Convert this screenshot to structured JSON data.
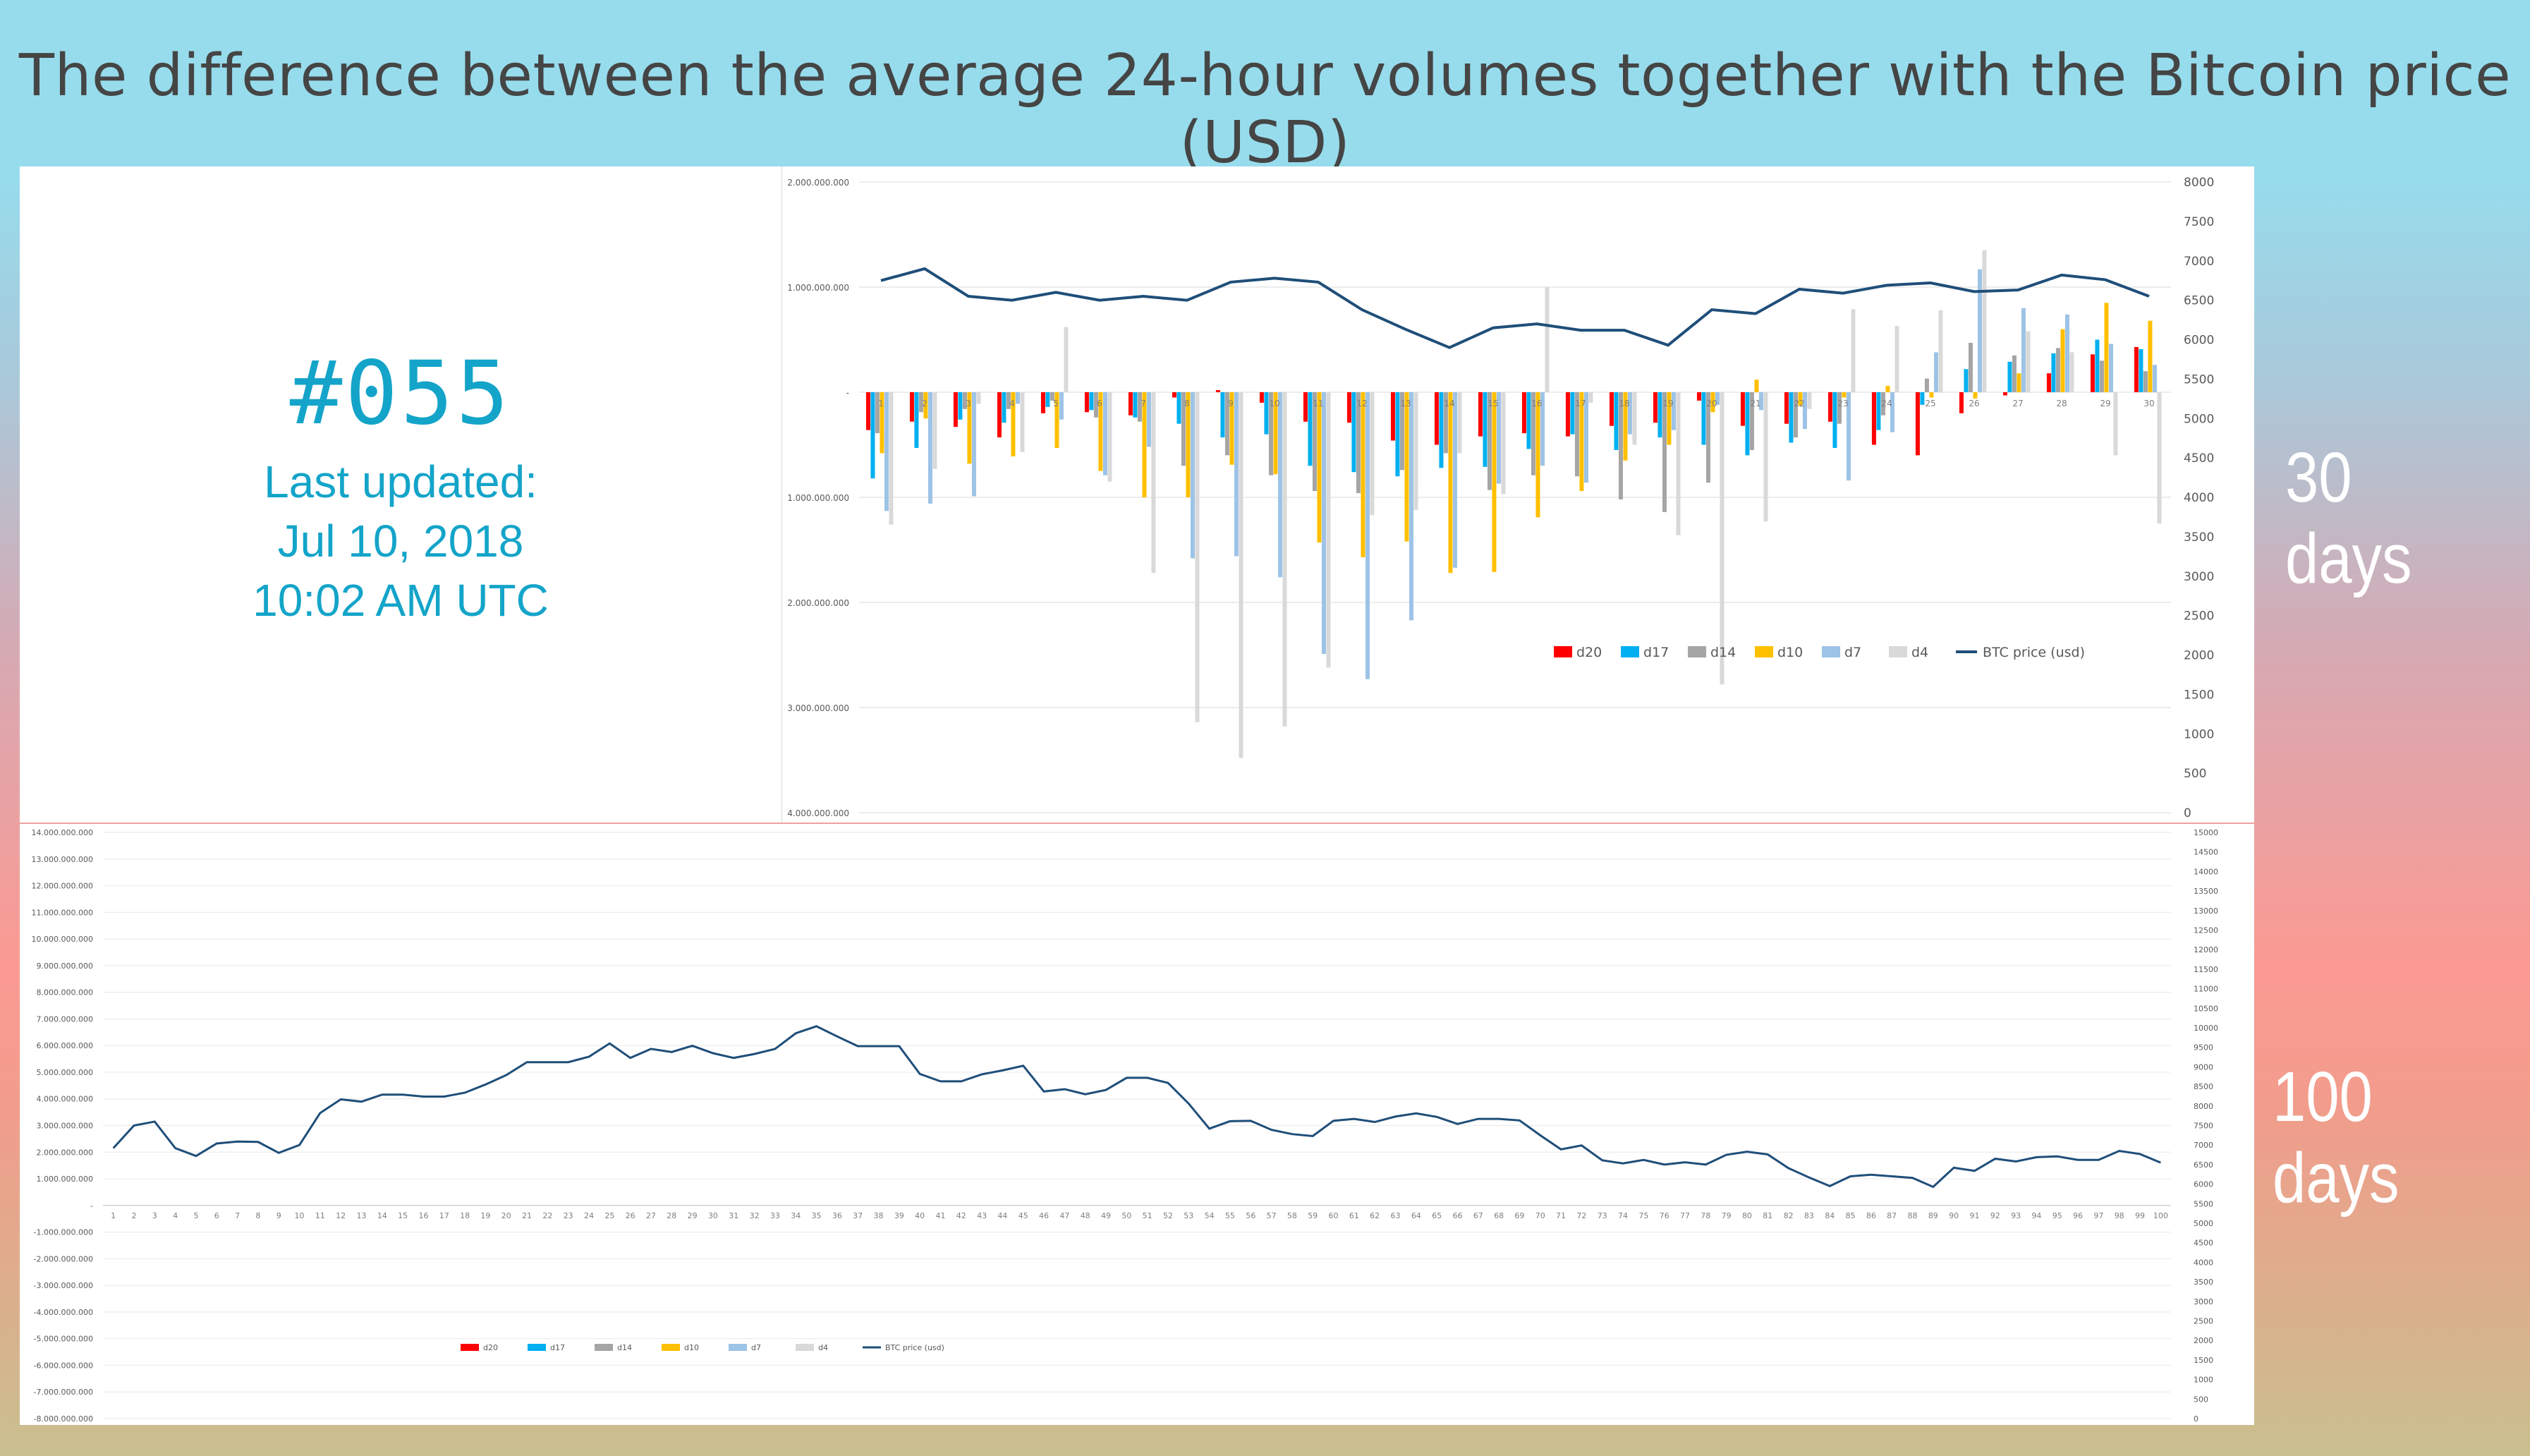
{
  "title": "The difference between the average 24-hour volumes together with the Bitcoin price (USD)",
  "issue": "#055",
  "updated": {
    "line1": "Last updated:",
    "line2": "Jul 10, 2018",
    "line3": "10:02 AM UTC"
  },
  "side_labels": {
    "short": "30 days",
    "long": "100 days"
  },
  "colors": {
    "d20": "#ff0000",
    "d17": "#00b0f0",
    "d14": "#a5a5a5",
    "d10": "#ffc000",
    "d7": "#9dc3e6",
    "d4": "#d9d9d9",
    "btc": "#1f4e79"
  },
  "chart_data": [
    {
      "type": "bar",
      "categories": [
        "1",
        "2",
        "3",
        "4",
        "5",
        "6",
        "7",
        "8",
        "9",
        "10",
        "11",
        "12",
        "13",
        "14",
        "15",
        "16",
        "17",
        "18",
        "19",
        "20",
        "21",
        "22",
        "23",
        "24",
        "25",
        "26",
        "27",
        "28",
        "29",
        "30"
      ],
      "left_ticks": [
        "2.000.000.000",
        "1.000.000.000",
        "-",
        "1.000.000.000",
        "2.000.000.000",
        "3.000.000.000",
        "4.000.000.000"
      ],
      "right_ticks": [
        "8000",
        "7500",
        "7000",
        "6500",
        "6000",
        "5500",
        "5000",
        "4500",
        "4000",
        "3500",
        "3000",
        "2500",
        "2000",
        "1500",
        "1000",
        "500",
        "0"
      ],
      "ylim": [
        -4000000000,
        2000000000
      ],
      "y2lim": [
        0,
        8000
      ],
      "legend_position": "inside-bottom-right",
      "series": [
        {
          "name": "d20",
          "values": [
            -360000000,
            -280000000,
            -330000000,
            -430000000,
            -200000000,
            -190000000,
            -220000000,
            -50000000,
            20000000,
            -100000000,
            -280000000,
            -290000000,
            -460000000,
            -500000000,
            -420000000,
            -390000000,
            -420000000,
            -320000000,
            -290000000,
            -80000000,
            -320000000,
            -300000000,
            -280000000,
            -500000000,
            -600000000,
            -200000000,
            -30000000,
            180000000,
            360000000,
            430000000
          ]
        },
        {
          "name": "d17",
          "values": [
            -820000000,
            -530000000,
            -260000000,
            -290000000,
            -140000000,
            -170000000,
            -240000000,
            -300000000,
            -430000000,
            -400000000,
            -700000000,
            -760000000,
            -800000000,
            -720000000,
            -710000000,
            -540000000,
            -400000000,
            -550000000,
            -430000000,
            -500000000,
            -600000000,
            -480000000,
            -530000000,
            -360000000,
            -120000000,
            220000000,
            290000000,
            370000000,
            500000000,
            410000000
          ]
        },
        {
          "name": "d14",
          "values": [
            -390000000,
            -190000000,
            -160000000,
            -160000000,
            -80000000,
            -240000000,
            -280000000,
            -700000000,
            -600000000,
            -790000000,
            -940000000,
            -960000000,
            -740000000,
            -580000000,
            -930000000,
            -790000000,
            -800000000,
            -1020000000,
            -1140000000,
            -860000000,
            -550000000,
            -430000000,
            -300000000,
            -220000000,
            130000000,
            470000000,
            350000000,
            420000000,
            300000000,
            200000000
          ]
        },
        {
          "name": "d10",
          "values": [
            -580000000,
            -250000000,
            -680000000,
            -610000000,
            -530000000,
            -750000000,
            -1000000000,
            -1000000000,
            -690000000,
            -780000000,
            -1430000000,
            -1570000000,
            -1420000000,
            -1720000000,
            -1710000000,
            -1190000000,
            -940000000,
            -650000000,
            -500000000,
            -190000000,
            120000000,
            -130000000,
            -50000000,
            60000000,
            -50000000,
            -60000000,
            180000000,
            600000000,
            850000000,
            680000000
          ]
        },
        {
          "name": "d7",
          "values": [
            -1130000000,
            -1060000000,
            -990000000,
            -110000000,
            -260000000,
            -790000000,
            -520000000,
            -1580000000,
            -1560000000,
            -1760000000,
            -2490000000,
            -2730000000,
            -2170000000,
            -1670000000,
            -870000000,
            -700000000,
            -860000000,
            -400000000,
            -360000000,
            -120000000,
            -170000000,
            -350000000,
            -840000000,
            -380000000,
            380000000,
            1170000000,
            800000000,
            740000000,
            460000000,
            260000000
          ]
        },
        {
          "name": "d4",
          "values": [
            -1260000000,
            -730000000,
            -110000000,
            -570000000,
            620000000,
            -850000000,
            -1720000000,
            -3140000000,
            -3480000000,
            -3180000000,
            -2620000000,
            -1170000000,
            -1120000000,
            -580000000,
            -970000000,
            1000000000,
            -100000000,
            -500000000,
            -1360000000,
            -2780000000,
            -1230000000,
            -160000000,
            790000000,
            630000000,
            780000000,
            1350000000,
            580000000,
            380000000,
            -600000000,
            -1250000000
          ]
        },
        {
          "name": "BTC price (usd)",
          "axis": "secondary",
          "values": [
            6750,
            6900,
            6550,
            6500,
            6600,
            6500,
            6550,
            6500,
            6730,
            6780,
            6730,
            6380,
            6130,
            5900,
            6150,
            6200,
            6120,
            6120,
            5930,
            6380,
            6330,
            6640,
            6590,
            6690,
            6720,
            6610,
            6630,
            6820,
            6760,
            6550
          ]
        }
      ]
    },
    {
      "type": "bar",
      "categories": [
        "1",
        "2",
        "3",
        "4",
        "5",
        "6",
        "7",
        "8",
        "9",
        "10",
        "11",
        "12",
        "13",
        "14",
        "15",
        "16",
        "17",
        "18",
        "19",
        "20",
        "21",
        "22",
        "23",
        "24",
        "25",
        "26",
        "27",
        "28",
        "29",
        "30",
        "31",
        "32",
        "33",
        "34",
        "35",
        "36",
        "37",
        "38",
        "39",
        "40",
        "41",
        "42",
        "43",
        "44",
        "45",
        "46",
        "47",
        "48",
        "49",
        "50",
        "51",
        "52",
        "53",
        "54",
        "55",
        "56",
        "57",
        "58",
        "59",
        "60",
        "61",
        "62",
        "63",
        "64",
        "65",
        "66",
        "67",
        "68",
        "69",
        "70",
        "71",
        "72",
        "73",
        "74",
        "75",
        "76",
        "77",
        "78",
        "79",
        "80",
        "81",
        "82",
        "83",
        "84",
        "85",
        "86",
        "87",
        "88",
        "89",
        "90",
        "91",
        "92",
        "93",
        "94",
        "95",
        "96",
        "97",
        "98",
        "99",
        "100"
      ],
      "left_ticks": [
        "14.000.000.000",
        "13.000.000.000",
        "12.000.000.000",
        "11.000.000.000",
        "10.000.000.000",
        "9.000.000.000",
        "8.000.000.000",
        "7.000.000.000",
        "6.000.000.000",
        "5.000.000.000",
        "4.000.000.000",
        "3.000.000.000",
        "2.000.000.000",
        "1.000.000.000",
        "-",
        "-1.000.000.000",
        "-2.000.000.000",
        "-3.000.000.000",
        "-4.000.000.000",
        "-5.000.000.000",
        "-6.000.000.000",
        "-7.000.000.000",
        "-8.000.000.000"
      ],
      "right_ticks": [
        "15000",
        "14500",
        "14000",
        "13500",
        "13000",
        "12500",
        "12000",
        "11500",
        "11000",
        "10500",
        "10000",
        "9500",
        "9000",
        "8500",
        "8000",
        "7500",
        "7000",
        "6500",
        "6000",
        "5500",
        "5000",
        "4500",
        "4000",
        "3500",
        "3000",
        "2500",
        "2000",
        "1500",
        "1000",
        "500",
        "0"
      ],
      "ylim": [
        -8000000000,
        14000000000
      ],
      "y2lim": [
        0,
        15000
      ],
      "legend_position": "inside-bottom-left",
      "legend": [
        "d20",
        "d17",
        "d14",
        "d10",
        "d7",
        "d4",
        "BTC price (usd)"
      ],
      "btc_price": [
        6920,
        7500,
        7600,
        6920,
        6720,
        7040,
        7090,
        7080,
        6800,
        7000,
        7820,
        8170,
        8110,
        8290,
        8290,
        8240,
        8240,
        8340,
        8550,
        8790,
        9120,
        9120,
        9120,
        9260,
        9600,
        9230,
        9460,
        9380,
        9540,
        9350,
        9230,
        9330,
        9460,
        9860,
        10040,
        9780,
        9530,
        9530,
        9530,
        8820,
        8630,
        8630,
        8810,
        8910,
        9030,
        8370,
        8430,
        8300,
        8410,
        8720,
        8720,
        8590,
        8060,
        7420,
        7610,
        7620,
        7390,
        7280,
        7230,
        7620,
        7670,
        7590,
        7730,
        7810,
        7720,
        7540,
        7670,
        7670,
        7630,
        7250,
        6890,
        6990,
        6610,
        6530,
        6620,
        6500,
        6560,
        6500,
        6750,
        6830,
        6760,
        6410,
        6170,
        5950,
        6200,
        6240,
        6200,
        6160,
        5930,
        6420,
        6340,
        6650,
        6580,
        6690,
        6710,
        6620,
        6620,
        6850,
        6770,
        6550
      ]
    }
  ]
}
